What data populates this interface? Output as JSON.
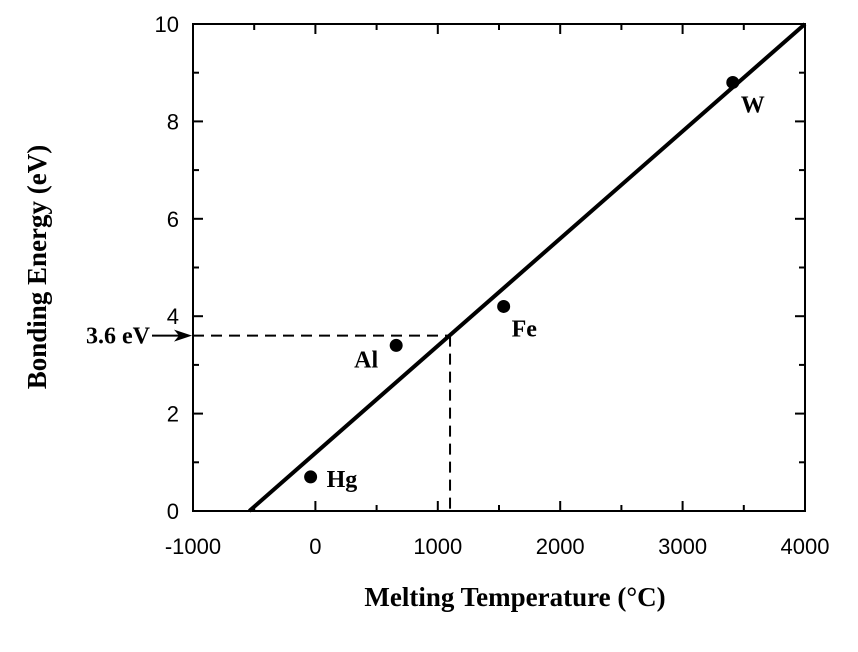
{
  "chart_data": {
    "type": "scatter",
    "title": "",
    "xlabel": "Melting Temperature (°C)",
    "ylabel": "Bonding Energy (eV)",
    "xlim": [
      -1000,
      4000
    ],
    "ylim": [
      0,
      10
    ],
    "xticks": [
      "-1000",
      "0",
      "1000",
      "2000",
      "3000",
      "4000"
    ],
    "yticks": [
      "0",
      "2",
      "4",
      "6",
      "8",
      "10"
    ],
    "grid": false,
    "points": [
      {
        "label": "Hg",
        "x": -39,
        "y": 0.7
      },
      {
        "label": "Al",
        "x": 660,
        "y": 3.4
      },
      {
        "label": "Fe",
        "x": 1538,
        "y": 4.2
      },
      {
        "label": "W",
        "x": 3410,
        "y": 8.8
      }
    ],
    "fit_line": {
      "x": [
        -540,
        4000
      ],
      "y": [
        0,
        10
      ]
    },
    "annotation": {
      "label": "3.6 eV",
      "y": 3.6,
      "x": 1100
    }
  }
}
